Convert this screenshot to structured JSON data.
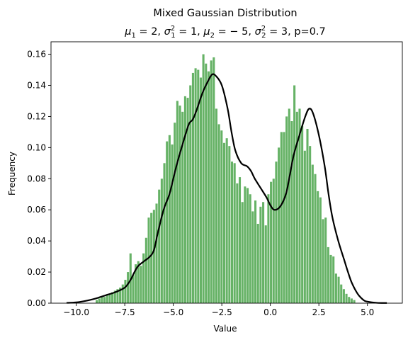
{
  "chart_data": {
    "type": "bar",
    "title_line1": "Mixed Gaussian Distribution",
    "title_line2": {
      "mu1_sym": "μ",
      "mu1_sub": "1",
      "mu1_val": " = 2, ",
      "sig1_sym": "σ",
      "sig1_sup": "2",
      "sig1_sub": "1",
      "sig1_val": " = 1, ",
      "mu2_sym": "μ",
      "mu2_sub": "2",
      "mu2_val": " = − 5, ",
      "sig2_sym": "σ",
      "sig2_sup": "2",
      "sig2_sub": "2",
      "sig2_val": " = 3, p=0.7"
    },
    "xlabel": "Value",
    "ylabel": "Frequency",
    "xlim": [
      -11.3,
      6.8
    ],
    "ylim": [
      0,
      0.168
    ],
    "xticks": [
      -10.0,
      -7.5,
      -5.0,
      -2.5,
      0.0,
      2.5,
      5.0
    ],
    "xtick_labels": [
      "−10.0",
      "−7.5",
      "−5.0",
      "−2.5",
      "0.0",
      "2.5",
      "5.0"
    ],
    "yticks": [
      0.0,
      0.02,
      0.04,
      0.06,
      0.08,
      0.1,
      0.12,
      0.14,
      0.16
    ],
    "ytick_labels": [
      "0.00",
      "0.02",
      "0.04",
      "0.06",
      "0.08",
      "0.10",
      "0.12",
      "0.14",
      "0.16"
    ],
    "histogram": {
      "color": "#66b266",
      "bin_start": -9.0,
      "bin_width": 0.134,
      "values": [
        0.002,
        0.003,
        0.004,
        0.004,
        0.005,
        0.006,
        0.007,
        0.008,
        0.009,
        0.01,
        0.012,
        0.015,
        0.02,
        0.032,
        0.018,
        0.025,
        0.027,
        0.024,
        0.032,
        0.042,
        0.055,
        0.058,
        0.06,
        0.064,
        0.073,
        0.08,
        0.09,
        0.104,
        0.108,
        0.102,
        0.116,
        0.13,
        0.127,
        0.123,
        0.133,
        0.132,
        0.14,
        0.148,
        0.151,
        0.15,
        0.145,
        0.16,
        0.154,
        0.149,
        0.156,
        0.158,
        0.125,
        0.115,
        0.111,
        0.103,
        0.106,
        0.101,
        0.091,
        0.09,
        0.077,
        0.081,
        0.065,
        0.075,
        0.074,
        0.07,
        0.059,
        0.066,
        0.051,
        0.062,
        0.065,
        0.05,
        0.07,
        0.078,
        0.08,
        0.091,
        0.1,
        0.11,
        0.11,
        0.12,
        0.125,
        0.117,
        0.14,
        0.123,
        0.125,
        0.114,
        0.098,
        0.112,
        0.101,
        0.089,
        0.083,
        0.072,
        0.068,
        0.054,
        0.055,
        0.036,
        0.031,
        0.03,
        0.019,
        0.017,
        0.012,
        0.009,
        0.006,
        0.004,
        0.003,
        0.002
      ]
    },
    "kde": {
      "color": "#000000",
      "x": [
        -10.5,
        -10.0,
        -9.5,
        -9.0,
        -8.5,
        -8.0,
        -7.5,
        -7.2,
        -7.0,
        -6.8,
        -6.5,
        -6.2,
        -6.0,
        -5.8,
        -5.5,
        -5.2,
        -5.0,
        -4.8,
        -4.5,
        -4.2,
        -4.0,
        -3.8,
        -3.5,
        -3.2,
        -3.0,
        -2.8,
        -2.5,
        -2.2,
        -2.0,
        -1.8,
        -1.5,
        -1.2,
        -1.0,
        -0.8,
        -0.5,
        -0.2,
        0.0,
        0.2,
        0.5,
        0.8,
        1.0,
        1.2,
        1.5,
        1.8,
        2.0,
        2.2,
        2.5,
        2.8,
        3.0,
        3.2,
        3.5,
        3.8,
        4.0,
        4.2,
        4.5,
        4.8,
        5.0,
        5.5,
        6.0
      ],
      "y": [
        0.0002,
        0.0005,
        0.0015,
        0.003,
        0.005,
        0.007,
        0.01,
        0.015,
        0.02,
        0.024,
        0.027,
        0.03,
        0.034,
        0.045,
        0.06,
        0.07,
        0.08,
        0.09,
        0.103,
        0.115,
        0.118,
        0.124,
        0.135,
        0.143,
        0.147,
        0.146,
        0.14,
        0.125,
        0.11,
        0.098,
        0.09,
        0.088,
        0.085,
        0.08,
        0.074,
        0.068,
        0.063,
        0.06,
        0.062,
        0.07,
        0.082,
        0.095,
        0.108,
        0.12,
        0.125,
        0.122,
        0.108,
        0.088,
        0.07,
        0.055,
        0.04,
        0.028,
        0.02,
        0.013,
        0.006,
        0.002,
        0.001,
        0.0002,
        0.0001
      ]
    }
  }
}
